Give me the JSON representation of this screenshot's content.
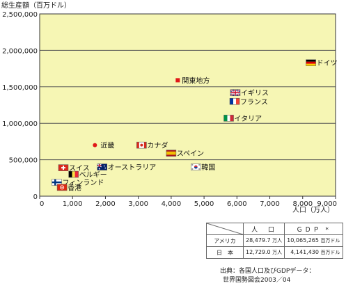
{
  "chart_data": {
    "type": "scatter",
    "ylabel": "総生産額（百万ドル）",
    "xlabel": "人口（万人）",
    "xlim": [
      0,
      9000
    ],
    "ylim": [
      0,
      2500000
    ],
    "x_ticks": [
      "0",
      "1,000",
      "2,000",
      "3,000",
      "4,000",
      "5,000",
      "6,000",
      "7,000",
      "8,000",
      "9,000"
    ],
    "y_ticks": [
      "0",
      "500,000",
      "1,000,000",
      "1,500,000",
      "2,000,000",
      "2,500,000"
    ],
    "grid": "horizontal",
    "background_color": "#f6f6b4",
    "points": [
      {
        "label": "ドイツ",
        "x": 8250,
        "y": 1830000,
        "marker": "germany-flag-icon"
      },
      {
        "label": "関東地方",
        "x": 4200,
        "y": 1590000,
        "marker": "red-square"
      },
      {
        "label": "イギリス",
        "x": 5950,
        "y": 1420000,
        "marker": "uk-flag-icon"
      },
      {
        "label": "フランス",
        "x": 5930,
        "y": 1300000,
        "marker": "france-flag-icon"
      },
      {
        "label": "イタリア",
        "x": 5750,
        "y": 1070000,
        "marker": "italy-flag-icon"
      },
      {
        "label": "近畿",
        "x": 1680,
        "y": 700000,
        "marker": "red-dot"
      },
      {
        "label": "カナダ",
        "x": 3100,
        "y": 700000,
        "marker": "canada-flag-icon"
      },
      {
        "label": "スペイン",
        "x": 4000,
        "y": 590000,
        "marker": "spain-flag-icon"
      },
      {
        "label": "韓国",
        "x": 4750,
        "y": 400000,
        "marker": "korea-flag-icon"
      },
      {
        "label": "オーストラリア",
        "x": 1900,
        "y": 400000,
        "marker": "australia-flag-icon"
      },
      {
        "label": "スイス",
        "x": 720,
        "y": 390000,
        "marker": "switzerland-flag-icon"
      },
      {
        "label": "ベルギー",
        "x": 1030,
        "y": 300000,
        "marker": "belgium-flag-icon"
      },
      {
        "label": "フィンランド",
        "x": 520,
        "y": 190000,
        "marker": "finland-flag-icon"
      },
      {
        "label": "香港",
        "x": 680,
        "y": 120000,
        "marker": "hongkong-flag-icon"
      }
    ]
  },
  "table": {
    "headers": [
      "人　口",
      "ＧＤＰ *"
    ],
    "rows": [
      {
        "name": "アメリカ",
        "population": "28,479.7",
        "population_unit": "万人",
        "gdp": "10,065,265",
        "gdp_unit": "百万ドル"
      },
      {
        "name": "日　本",
        "population": "12,729.0",
        "population_unit": "万人",
        "gdp": "4,141,430",
        "gdp_unit": "百万ドル"
      }
    ]
  },
  "source": {
    "line1": "出典：各国人口及びGDPデータ：",
    "line2": "世界国勢図会2003／04"
  }
}
